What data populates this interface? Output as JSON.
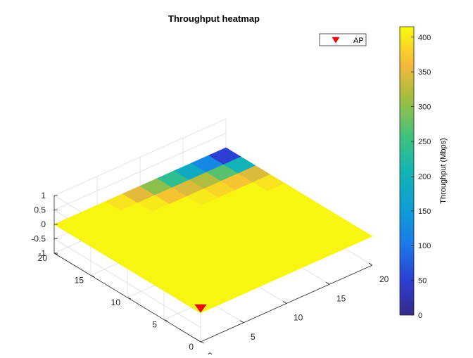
{
  "chart_data": {
    "type": "heatmap",
    "title": "Throughput heatmap",
    "x": [
      0,
      2,
      4,
      6,
      8,
      10,
      12,
      14,
      16,
      18,
      20
    ],
    "y": [
      0,
      2,
      4,
      6,
      8,
      10,
      12,
      14,
      16,
      18,
      20
    ],
    "zlim": [
      -1,
      1
    ],
    "xticks": [
      "0",
      "5",
      "10",
      "15",
      "20"
    ],
    "yticks": [
      "0",
      "5",
      "10",
      "15",
      "20"
    ],
    "zticks": [
      "-1",
      "-0.5",
      "0",
      "0.5",
      "1"
    ],
    "clim": [
      0,
      415
    ],
    "colormap": "parula",
    "colorbar": {
      "label": "Throughput (Mbps)",
      "ticks": [
        "0",
        "50",
        "100",
        "150",
        "200",
        "250",
        "300",
        "350",
        "400"
      ]
    },
    "grid": true,
    "legend": {
      "position": "top-right",
      "entries": [
        {
          "name": "AP",
          "marker": "down-triangle",
          "color": "#ff0000"
        }
      ]
    },
    "ap": {
      "x": 0,
      "y": 0,
      "label": "AP"
    },
    "values": [
      [
        410,
        410,
        410,
        410,
        410,
        410,
        410,
        410,
        410,
        410
      ],
      [
        410,
        410,
        410,
        410,
        410,
        410,
        410,
        410,
        410,
        410
      ],
      [
        410,
        410,
        410,
        410,
        410,
        410,
        410,
        410,
        410,
        410
      ],
      [
        410,
        410,
        410,
        410,
        410,
        410,
        410,
        410,
        410,
        410
      ],
      [
        410,
        410,
        410,
        410,
        410,
        410,
        410,
        410,
        410,
        410
      ],
      [
        410,
        410,
        410,
        410,
        410,
        410,
        410,
        410,
        410,
        410
      ],
      [
        410,
        410,
        410,
        410,
        410,
        410,
        410,
        410,
        410,
        395
      ],
      [
        410,
        410,
        410,
        410,
        410,
        410,
        400,
        385,
        370,
        345
      ],
      [
        410,
        410,
        410,
        410,
        400,
        370,
        345,
        320,
        270,
        200
      ],
      [
        410,
        410,
        410,
        395,
        350,
        300,
        240,
        180,
        120,
        50
      ]
    ]
  }
}
